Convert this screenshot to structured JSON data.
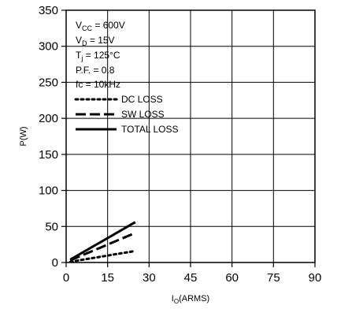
{
  "chart_data": {
    "type": "line",
    "title": "",
    "xlabel": {
      "main": "I",
      "sub": "O",
      "tail": "(ARMS)"
    },
    "ylabel": "P(W)",
    "xlim": [
      0,
      90
    ],
    "ylim": [
      0,
      350
    ],
    "xticks": [
      0,
      15,
      30,
      45,
      60,
      75,
      90
    ],
    "yticks": [
      0,
      50,
      100,
      150,
      200,
      250,
      300,
      350
    ],
    "xtick_labels": [
      "0",
      "15",
      "30",
      "45",
      "60",
      "75",
      "90"
    ],
    "ytick_labels": [
      "0",
      "50",
      "100",
      "150",
      "200",
      "250",
      "300",
      "350"
    ],
    "grid": true,
    "legend_position": "top-left",
    "conditions": [
      {
        "main": "V",
        "sub": "CC",
        "tail": " = 600V"
      },
      {
        "main": "V",
        "sub": "D",
        "tail": " = 15V"
      },
      {
        "main": "T",
        "sub": "j",
        "tail": " = 125°C"
      },
      {
        "main": "P.F. = 0.8",
        "sub": "",
        "tail": ""
      },
      {
        "main": "fc = 10kHz",
        "sub": "",
        "tail": ""
      }
    ],
    "series": [
      {
        "name": "DC LOSS",
        "style": "dotted",
        "x": [
          1.5,
          25
        ],
        "y": [
          1,
          16
        ]
      },
      {
        "name": "SW LOSS",
        "style": "dashed",
        "x": [
          1.5,
          25
        ],
        "y": [
          3,
          41
        ]
      },
      {
        "name": "TOTAL LOSS",
        "style": "solid",
        "x": [
          1.5,
          25
        ],
        "y": [
          4,
          56
        ]
      }
    ]
  }
}
